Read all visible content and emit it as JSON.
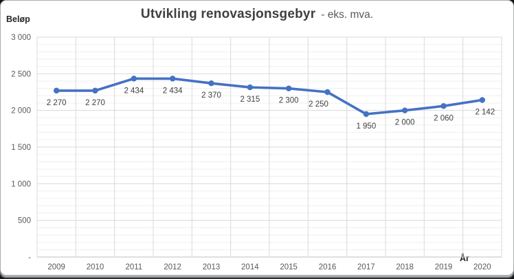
{
  "window": {
    "background": "#ffffff",
    "border_color": "#a9abad"
  },
  "chart_data": {
    "type": "line",
    "title": "Utvikling renovasjonsgebyr",
    "subtitle": "- eks. mva.",
    "ylabel": "Beløp",
    "xlabel": "År",
    "categories": [
      "2009",
      "2010",
      "2011",
      "2012",
      "2013",
      "2014",
      "2015",
      "2016",
      "2017",
      "2018",
      "2019",
      "2020"
    ],
    "series": [
      {
        "values": [
          2270,
          2270,
          2434,
          2434,
          2370,
          2315,
          2300,
          2250,
          1950,
          2000,
          2060,
          2142
        ],
        "color": "#4472C4",
        "marker": "circle"
      }
    ],
    "point_labels": [
      "2 270",
      "2 270",
      "2 434",
      "2 434",
      "2 370",
      "2 315",
      "2 300",
      "2 250",
      "1 950",
      "2 000",
      "2 060",
      "2 142"
    ],
    "point_label_dx": [
      0,
      0,
      0,
      0,
      0,
      0,
      0,
      -13,
      0,
      0,
      0,
      4
    ],
    "ylim": [
      0,
      3000
    ],
    "ytick_interval": 500,
    "yminor_interval": 100,
    "yticks": [
      {
        "value": 0,
        "label": "-"
      },
      {
        "value": 500,
        "label": "500"
      },
      {
        "value": 1000,
        "label": "1 000"
      },
      {
        "value": 1500,
        "label": "1 500"
      },
      {
        "value": 2000,
        "label": "2 000"
      },
      {
        "value": 2500,
        "label": "2 500"
      },
      {
        "value": 3000,
        "label": "3 000"
      }
    ],
    "grid": {
      "major": true,
      "minor": true,
      "vertical": true
    },
    "legend": "none",
    "colors": {
      "line": "#4472C4",
      "major_grid": "#d9d9d9",
      "minor_grid": "#efefef",
      "axis_line": "#bfbfbf",
      "axis_text": "#595959",
      "data_label": "#404040",
      "title": "#3f3f3f",
      "subtitle": "#595959",
      "axis_title": "#262626"
    }
  }
}
